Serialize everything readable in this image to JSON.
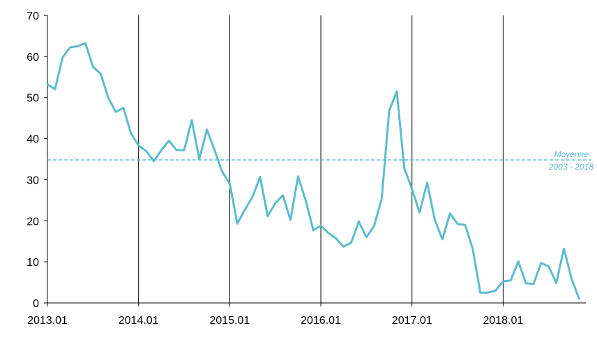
{
  "chart_data": {
    "type": "line",
    "title": "",
    "xlabel": "",
    "ylabel": "",
    "ylim": [
      0,
      70
    ],
    "yticks": [
      "0",
      "10",
      "20",
      "30",
      "40",
      "50",
      "60",
      "70"
    ],
    "xticks": [
      "2013.01",
      "2014.01",
      "2015.01",
      "2016.01",
      "2017.01",
      "2018.01"
    ],
    "x_unit": "month",
    "x_start": "2013.01",
    "grid": "vertical lines at each January",
    "series": [
      {
        "name": "",
        "color": "#5bbccd",
        "values": [
          53.2,
          52,
          59.8,
          62.2,
          62.5,
          63.2,
          57.5,
          55.8,
          50,
          46.5,
          47.5,
          41.3,
          38.3,
          37,
          34.5,
          37.2,
          39.5,
          37.2,
          37.2,
          44.5,
          35,
          42.2,
          37.2,
          32,
          29,
          19.3,
          22.7,
          25.8,
          30.7,
          21.1,
          24.3,
          26.2,
          20.2,
          30.8,
          25,
          17.7,
          18.8,
          17,
          15.7,
          13.7,
          14.7,
          19.8,
          16,
          18.7,
          25.2,
          46.7,
          51.5,
          32.7,
          27.8,
          22,
          29.3,
          20.2,
          15.5,
          21.8,
          19.2,
          19,
          13.2,
          2.5,
          2.5,
          3,
          5.2,
          5.5,
          10.1,
          4.8,
          4.6,
          9.7,
          8.9,
          4.8,
          13.2,
          6,
          1
        ]
      }
    ],
    "reference_line": {
      "value": 34.8,
      "label_line1": "Moyenne",
      "label_line2": "2003 - 2018",
      "color": "#5bbccd",
      "style": "dashed"
    }
  }
}
